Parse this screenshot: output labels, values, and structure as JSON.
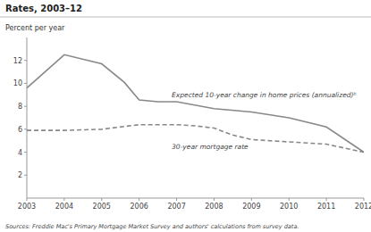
{
  "chart_data": {
    "type": "line",
    "title": "Rates, 2003–12",
    "y_label": "Percent per year",
    "source": "Sources: Freddie Mac's Primary Mortgage Market Survey and authors' calculations from survey data.",
    "xlim": [
      2003,
      2012
    ],
    "ylim": [
      0,
      14
    ],
    "xticks": [
      2003,
      2004,
      2005,
      2006,
      2007,
      2008,
      2009,
      2010,
      2011,
      2012
    ],
    "yticks": [
      2,
      4,
      6,
      8,
      10,
      12
    ],
    "series": [
      {
        "name": "Expected 10-year change in home prices (annualized)ᵇ",
        "color": "#888888",
        "line_style": "solid",
        "x": [
          2003,
          2004,
          2005,
          2005.6,
          2006,
          2006.5,
          2007,
          2008,
          2009,
          2010,
          2011,
          2012
        ],
        "values": [
          9.6,
          12.5,
          11.7,
          10.1,
          8.55,
          8.4,
          8.4,
          7.8,
          7.5,
          7.0,
          6.2,
          4.0
        ]
      },
      {
        "name": "30-year mortgage rate",
        "color": "#888888",
        "line_style": "dashed",
        "x": [
          2003,
          2004,
          2005,
          2006,
          2007,
          2007.5,
          2008,
          2008.5,
          2009,
          2010,
          2011,
          2012
        ],
        "values": [
          5.9,
          5.9,
          6.0,
          6.4,
          6.4,
          6.3,
          6.1,
          5.5,
          5.1,
          4.9,
          4.7,
          4.0
        ]
      }
    ]
  }
}
